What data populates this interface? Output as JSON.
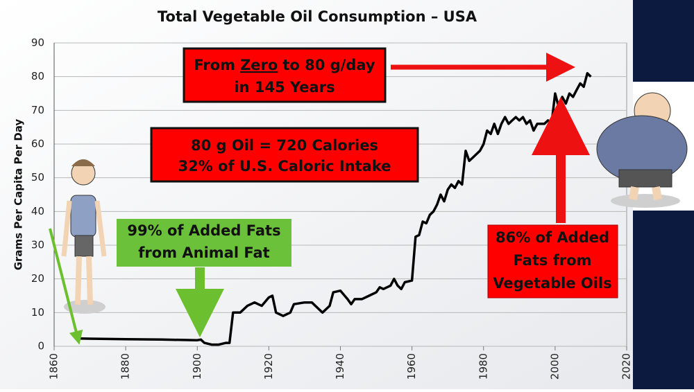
{
  "chart_data": {
    "type": "line",
    "title": "Total Vegetable Oil Consumption – USA",
    "y_label": "Grams Per Capita Per Day",
    "color": "#000000",
    "grid": true,
    "xlim": [
      1860,
      2020
    ],
    "xticks": [
      1860,
      1880,
      1900,
      1920,
      1940,
      1960,
      1980,
      2000,
      2020
    ],
    "ylim": [
      0,
      90
    ],
    "yticks": [
      0,
      10,
      20,
      30,
      40,
      50,
      60,
      70,
      80,
      90
    ],
    "x": [
      1867,
      1880,
      1890,
      1900,
      1901,
      1902,
      1904,
      1906,
      1908,
      1909,
      1910,
      1912,
      1914,
      1916,
      1918,
      1920,
      1921,
      1922,
      1924,
      1926,
      1927,
      1930,
      1932,
      1934,
      1935,
      1937,
      1938,
      1940,
      1942,
      1943,
      1944,
      1946,
      1948,
      1950,
      1951,
      1952,
      1954,
      1955,
      1956,
      1957,
      1958,
      1960,
      1961,
      1962,
      1963,
      1964,
      1965,
      1966,
      1967,
      1968,
      1969,
      1970,
      1971,
      1972,
      1973,
      1974,
      1975,
      1976,
      1977,
      1978,
      1979,
      1980,
      1981,
      1982,
      1983,
      1984,
      1985,
      1986,
      1987,
      1988,
      1989,
      1990,
      1991,
      1992,
      1993,
      1994,
      1995,
      1996,
      1997,
      1998,
      1999,
      2000,
      2001,
      2002,
      2003,
      2004,
      2005,
      2006,
      2007,
      2008,
      2009,
      2010
    ],
    "values": [
      2.3,
      2.1,
      2.0,
      1.8,
      2.0,
      1.0,
      0.5,
      0.5,
      1.0,
      1.0,
      10,
      10,
      12,
      13,
      12,
      14.5,
      15,
      10,
      9,
      10,
      12.5,
      13,
      13,
      11,
      10,
      12,
      16,
      16.5,
      14,
      12.5,
      14,
      14,
      15,
      16,
      17.5,
      17,
      18,
      20,
      18,
      17,
      19,
      19.5,
      32.5,
      33,
      37,
      36.5,
      39,
      40,
      42,
      45,
      43,
      46.5,
      48,
      47,
      49,
      48,
      58,
      55,
      56,
      57,
      58,
      60,
      64,
      63,
      66,
      63,
      66,
      68,
      66,
      67,
      68,
      67,
      68,
      66,
      67,
      64,
      66,
      66,
      66,
      67,
      66,
      75,
      71,
      74,
      72,
      75,
      74,
      76,
      78,
      77,
      81,
      80
    ],
    "annotations": [
      {
        "lines": [
          [
            "From",
            "Zero",
            "to 80 g/day"
          ],
          [
            "in 145 Years"
          ]
        ]
      },
      {
        "lines": [
          [
            "80 g Oil = 720 Calories"
          ],
          [
            "32% of U.S. Caloric Intake"
          ]
        ]
      },
      {
        "lines": [
          [
            "99% of Added Fats"
          ],
          [
            "from Animal Fat"
          ]
        ]
      },
      {
        "lines": [
          [
            "86% of Added"
          ],
          [
            "Fats from"
          ],
          [
            "Vegetable Oils"
          ]
        ]
      }
    ]
  }
}
